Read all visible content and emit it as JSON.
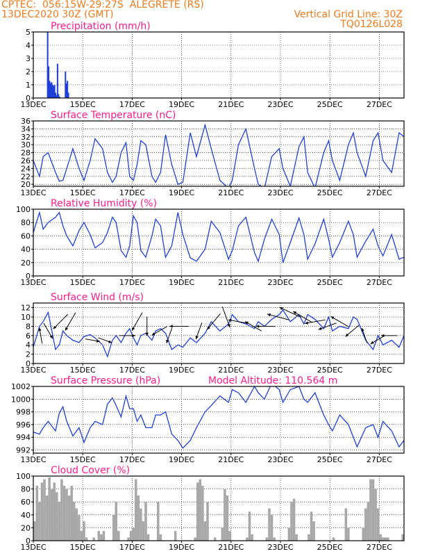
{
  "header": {
    "line1": "CPTEC:  056:15W-29:27S  ALEGRETE (RS)",
    "line2": "13DEC2020 30Z (GMT)",
    "right1": "Vertical Grid Line: 30Z",
    "right2": "TQ0126L028"
  },
  "colors": {
    "line": "#1f3fd8",
    "cloud": "#a8a8a8",
    "title": "#ff1e8c",
    "header": "#f07a1e"
  },
  "x_axis": {
    "start_day": 13,
    "end_day": 28,
    "tick_days": [
      13,
      15,
      17,
      19,
      21,
      23,
      25,
      27
    ],
    "tick_labels": [
      "13DEC",
      "15DEC",
      "17DEC",
      "19DEC",
      "21DEC",
      "23DEC",
      "25DEC",
      "27DEC"
    ]
  },
  "chart_data": [
    {
      "type": "bar",
      "title": "Precipitation (mm/h)",
      "ylim": [
        0,
        5
      ],
      "yticks": [
        0,
        1,
        2,
        3,
        4,
        5
      ],
      "x": [
        13.58,
        13.62,
        13.66,
        13.7,
        13.74,
        13.78,
        13.82,
        13.86,
        13.9,
        13.94,
        13.98,
        14.02,
        14.06,
        14.3,
        14.34,
        14.38,
        14.42
      ],
      "values": [
        5.0,
        2.4,
        1.3,
        1.1,
        1.2,
        1.0,
        0.9,
        1.0,
        0.4,
        0.2,
        2.6,
        0.3,
        0.1,
        2.0,
        1.1,
        1.3,
        0.4
      ]
    },
    {
      "type": "line",
      "title": "Surface Temperature (nC)",
      "ylim": [
        19.5,
        36
      ],
      "yticks": [
        20,
        22,
        24,
        26,
        28,
        30,
        32,
        34,
        36
      ],
      "x": [
        13.0,
        13.25,
        13.4,
        13.6,
        13.9,
        14.05,
        14.2,
        14.35,
        14.6,
        14.85,
        15.05,
        15.3,
        15.5,
        15.8,
        16.0,
        16.2,
        16.35,
        16.55,
        16.75,
        16.9,
        17.05,
        17.2,
        17.35,
        17.55,
        17.8,
        17.95,
        18.15,
        18.35,
        18.6,
        18.85,
        19.05,
        19.35,
        19.6,
        19.95,
        20.2,
        20.55,
        20.9,
        21.05,
        21.3,
        21.6,
        21.95,
        22.1,
        22.35,
        22.65,
        22.95,
        23.1,
        23.4,
        23.75,
        23.95,
        24.1,
        24.4,
        24.75,
        24.95,
        25.1,
        25.4,
        25.75,
        25.95,
        26.1,
        26.45,
        26.75,
        26.95,
        27.15,
        27.5,
        27.8,
        28.0
      ],
      "values": [
        26,
        22,
        27,
        28,
        23,
        20.8,
        21,
        24,
        29,
        24,
        21,
        26,
        31.5,
        29,
        23,
        20.5,
        22,
        28,
        30.5,
        22,
        21,
        25,
        31,
        30,
        22,
        20.5,
        23,
        32.5,
        25,
        20,
        20.5,
        33,
        27,
        35,
        29,
        21,
        19,
        21,
        30,
        34,
        24,
        20,
        19,
        27,
        29,
        24,
        19.5,
        29.5,
        32,
        23,
        19,
        28,
        31,
        26,
        21,
        30,
        33,
        28,
        22,
        31,
        33,
        26,
        23,
        33,
        32
      ]
    },
    {
      "type": "line",
      "title": "Relative Humidity (%)",
      "ylim": [
        0,
        100
      ],
      "yticks": [
        0,
        20,
        40,
        60,
        80,
        100
      ],
      "x": [
        13.0,
        13.25,
        13.4,
        13.6,
        13.9,
        14.05,
        14.2,
        14.35,
        14.6,
        14.85,
        15.05,
        15.3,
        15.5,
        15.8,
        16.0,
        16.2,
        16.35,
        16.55,
        16.75,
        16.9,
        17.05,
        17.2,
        17.35,
        17.55,
        17.8,
        17.95,
        18.15,
        18.35,
        18.6,
        18.85,
        19.05,
        19.35,
        19.6,
        19.95,
        20.2,
        20.55,
        20.9,
        21.05,
        21.3,
        21.6,
        21.95,
        22.1,
        22.35,
        22.65,
        22.95,
        23.1,
        23.4,
        23.75,
        23.95,
        24.1,
        24.4,
        24.75,
        24.95,
        25.1,
        25.4,
        25.75,
        25.95,
        26.1,
        26.45,
        26.75,
        26.95,
        27.15,
        27.5,
        27.8,
        28.0
      ],
      "values": [
        65,
        95,
        70,
        80,
        88,
        95,
        75,
        60,
        45,
        68,
        80,
        62,
        42,
        50,
        65,
        88,
        80,
        38,
        28,
        45,
        90,
        80,
        38,
        28,
        60,
        85,
        75,
        28,
        45,
        95,
        62,
        27,
        22,
        40,
        82,
        65,
        25,
        38,
        75,
        88,
        35,
        22,
        55,
        85,
        62,
        20,
        50,
        87,
        62,
        25,
        48,
        85,
        55,
        28,
        50,
        82,
        62,
        28,
        52,
        70,
        45,
        30,
        62,
        25,
        28
      ]
    },
    {
      "type": "line",
      "title": "Surface Wind (m/s)",
      "ylim": [
        0,
        13
      ],
      "yticks": [
        0,
        2,
        4,
        6,
        8,
        10,
        12
      ],
      "x": [
        13.0,
        13.25,
        13.4,
        13.6,
        13.9,
        14.05,
        14.2,
        14.35,
        14.6,
        14.85,
        15.05,
        15.3,
        15.5,
        15.8,
        16.0,
        16.2,
        16.35,
        16.55,
        16.75,
        16.9,
        17.05,
        17.2,
        17.35,
        17.55,
        17.8,
        17.95,
        18.15,
        18.35,
        18.6,
        18.85,
        19.05,
        19.35,
        19.6,
        19.95,
        20.2,
        20.55,
        20.9,
        21.05,
        21.3,
        21.6,
        21.95,
        22.1,
        22.35,
        22.65,
        22.95,
        23.1,
        23.4,
        23.75,
        23.95,
        24.1,
        24.4,
        24.75,
        24.95,
        25.1,
        25.4,
        25.75,
        25.95,
        26.1,
        26.45,
        26.75,
        26.95,
        27.15,
        27.5,
        27.8,
        28.0
      ],
      "values": [
        3.5,
        8,
        9,
        11,
        3,
        4,
        7,
        6,
        5,
        4.5,
        5.8,
        6.2,
        5.5,
        4,
        1.5,
        5,
        6,
        4.5,
        6.5,
        7.5,
        5.5,
        4,
        6,
        6.5,
        5,
        7,
        7.5,
        6.5,
        3,
        4,
        3.5,
        5.5,
        4.5,
        6.5,
        9,
        7,
        8.5,
        10.5,
        9,
        8.5,
        7.5,
        9,
        8,
        9.5,
        10.5,
        11.5,
        9,
        10.5,
        8.5,
        10.5,
        9.5,
        7.5,
        10,
        7,
        8,
        7.5,
        10,
        9.5,
        5,
        3,
        6,
        4,
        5,
        3.5,
        6
      ],
      "arrows": {
        "x": [
          13.3,
          13.6,
          14.1,
          14.5,
          15.4,
          15.9,
          16.8,
          17.2,
          17.6,
          18.1,
          18.5,
          18.9,
          19.7,
          20.3,
          20.8,
          21.3,
          21.9,
          22.4,
          22.9,
          23.4,
          23.9,
          24.4,
          24.9,
          25.4,
          25.9,
          26.4,
          26.9,
          27.4
        ],
        "speed": [
          6,
          7,
          9,
          9,
          5,
          5,
          6,
          9,
          8,
          7,
          6,
          8,
          7,
          9,
          10,
          9,
          8,
          8,
          10,
          11,
          10,
          9,
          8,
          9,
          7,
          6,
          5,
          6
        ],
        "direction_deg": [
          350,
          150,
          225,
          210,
          100,
          110,
          90,
          210,
          180,
          240,
          200,
          270,
          200,
          220,
          160,
          280,
          300,
          270,
          285,
          295,
          300,
          260,
          250,
          300,
          230,
          340,
          240,
          270
        ]
      }
    },
    {
      "type": "line",
      "title": "Surface Pressure (hPa)",
      "subtitle": "Model Altitude: 110.564 m",
      "ylim": [
        991.5,
        1002
      ],
      "yticks": [
        992,
        994,
        996,
        998,
        1000,
        1002
      ],
      "x": [
        13.0,
        13.25,
        13.4,
        13.6,
        13.9,
        14.05,
        14.2,
        14.35,
        14.6,
        14.85,
        15.05,
        15.3,
        15.5,
        15.8,
        16.0,
        16.2,
        16.35,
        16.55,
        16.75,
        16.9,
        17.05,
        17.2,
        17.35,
        17.55,
        17.8,
        17.95,
        18.15,
        18.35,
        18.6,
        18.85,
        19.05,
        19.35,
        19.6,
        19.95,
        20.2,
        20.55,
        20.9,
        21.05,
        21.3,
        21.6,
        21.95,
        22.1,
        22.35,
        22.65,
        22.95,
        23.1,
        23.4,
        23.75,
        23.95,
        24.1,
        24.4,
        24.75,
        24.95,
        25.1,
        25.4,
        25.75,
        25.95,
        26.1,
        26.45,
        26.75,
        26.95,
        27.15,
        27.5,
        27.8,
        28.0
      ],
      "values": [
        994.8,
        994.5,
        995.5,
        996.5,
        995,
        997.8,
        998.8,
        996.5,
        994.2,
        995.5,
        993.2,
        995.5,
        996.5,
        996,
        999.2,
        1000.2,
        999,
        997.2,
        1000.5,
        998.5,
        998.5,
        996.5,
        997.5,
        995.5,
        995.5,
        997.5,
        997.5,
        998,
        994.5,
        993.5,
        992.3,
        993.5,
        995.5,
        998,
        999,
        1000.5,
        999.5,
        1001.5,
        1001,
        999.5,
        1002,
        1001,
        1000,
        1002.5,
        1001.5,
        999.5,
        1001.5,
        1002,
        1000,
        999.5,
        1001,
        997.5,
        996,
        995,
        997.5,
        996,
        994,
        992.5,
        995.5,
        996,
        994,
        996.5,
        995,
        992.5,
        993.5
      ]
    },
    {
      "type": "bar",
      "title": "Cloud Cover (%)",
      "ylim": [
        0,
        100
      ],
      "yticks": [
        0,
        20,
        40,
        60,
        80,
        100
      ],
      "x": [
        13.05,
        13.15,
        13.25,
        13.35,
        13.45,
        13.55,
        13.65,
        13.75,
        13.85,
        13.95,
        14.05,
        14.15,
        14.25,
        14.35,
        14.45,
        14.55,
        14.65,
        14.75,
        14.85,
        14.95,
        15.05,
        15.15,
        15.25,
        15.35,
        15.45,
        15.55,
        15.65,
        15.75,
        15.85,
        15.95,
        16.05,
        16.15,
        16.25,
        16.35,
        16.45,
        16.55,
        16.65,
        16.75,
        16.85,
        16.95,
        17.05,
        17.15,
        17.25,
        17.35,
        17.45,
        17.55,
        17.65,
        17.75,
        17.85,
        17.95,
        18.05,
        18.15,
        18.25,
        18.35,
        18.45,
        18.55,
        18.65,
        18.75,
        18.85,
        18.95,
        19.05,
        19.15,
        19.25,
        19.35,
        19.45,
        19.55,
        19.65,
        19.75,
        19.85,
        19.95,
        20.05,
        20.15,
        20.25,
        20.35,
        20.45,
        20.55,
        20.65,
        20.75,
        20.85,
        20.95,
        21.05,
        21.15,
        21.25,
        21.35,
        21.45,
        21.55,
        21.65,
        21.75,
        21.85,
        21.95,
        22.05,
        22.15,
        22.25,
        22.35,
        22.45,
        22.55,
        22.65,
        22.75,
        22.85,
        22.95,
        23.05,
        23.15,
        23.25,
        23.35,
        23.45,
        23.55,
        23.65,
        23.75,
        23.85,
        23.95,
        24.05,
        24.15,
        24.25,
        24.35,
        24.45,
        24.55,
        24.65,
        24.75,
        24.85,
        24.95,
        25.05,
        25.15,
        25.25,
        25.35,
        25.45,
        25.55,
        25.65,
        25.75,
        25.85,
        25.95,
        26.05,
        26.15,
        26.25,
        26.35,
        26.45,
        26.55,
        26.65,
        26.75,
        26.85,
        26.95,
        27.05,
        27.15,
        27.25,
        27.35,
        27.45,
        27.55,
        27.65,
        27.75,
        27.85,
        27.95
      ],
      "values": [
        30,
        85,
        60,
        90,
        95,
        70,
        98,
        80,
        90,
        75,
        60,
        95,
        85,
        80,
        70,
        85,
        60,
        50,
        40,
        15,
        30,
        5,
        0,
        0,
        5,
        0,
        15,
        10,
        15,
        0,
        0,
        0,
        40,
        60,
        15,
        0,
        0,
        0,
        5,
        15,
        20,
        95,
        70,
        50,
        30,
        60,
        10,
        0,
        0,
        0,
        60,
        10,
        0,
        0,
        0,
        0,
        0,
        15,
        0,
        0,
        0,
        0,
        0,
        0,
        0,
        5,
        90,
        95,
        85,
        30,
        60,
        0,
        0,
        5,
        0,
        0,
        20,
        80,
        70,
        15,
        0,
        0,
        0,
        0,
        0,
        0,
        5,
        45,
        10,
        0,
        0,
        0,
        0,
        0,
        5,
        50,
        40,
        5,
        0,
        0,
        0,
        0,
        0,
        20,
        60,
        65,
        10,
        0,
        0,
        0,
        0,
        10,
        45,
        30,
        0,
        0,
        0,
        0,
        0,
        0,
        0,
        5,
        0,
        0,
        0,
        0,
        50,
        20,
        0,
        0,
        0,
        0,
        0,
        20,
        50,
        60,
        95,
        95,
        80,
        50,
        10,
        5,
        5,
        5,
        0,
        0,
        0,
        0,
        0,
        10
      ]
    }
  ]
}
